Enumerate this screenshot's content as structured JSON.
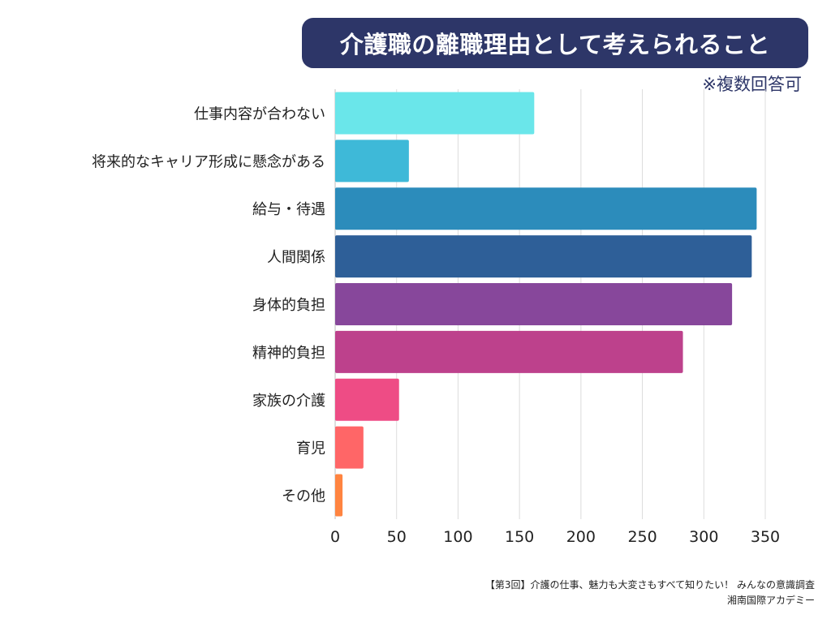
{
  "title": "介護職の離職理由として考えられること",
  "note": "※複数回答可",
  "source": {
    "line1": "【第3回】介護の仕事、魅力も大変さもすべて知りたい！ みんなの意識調査",
    "line2": "湘南国際アカデミー"
  },
  "chart_data": {
    "type": "bar",
    "orientation": "horizontal",
    "title": "介護職の離職理由として考えられること",
    "xlabel": "",
    "ylabel": "",
    "categories": [
      "仕事内容が合わない",
      "将来的なキャリア形成に懸念がある",
      "給与・待遇",
      "人間関係",
      "身体的負担",
      "精神的負担",
      "家族の介護",
      "育児",
      "その他"
    ],
    "values": [
      162,
      60,
      343,
      339,
      323,
      283,
      52,
      23,
      6
    ],
    "colors": [
      "#6ae6ea",
      "#3eb9d8",
      "#2c8cbb",
      "#2e5f98",
      "#87479b",
      "#bd418c",
      "#ee4c85",
      "#ff6667",
      "#ff8440"
    ],
    "xlim": [
      0,
      350
    ],
    "xticks": [
      0,
      50,
      100,
      150,
      200,
      250,
      300,
      350
    ],
    "grid": true
  }
}
